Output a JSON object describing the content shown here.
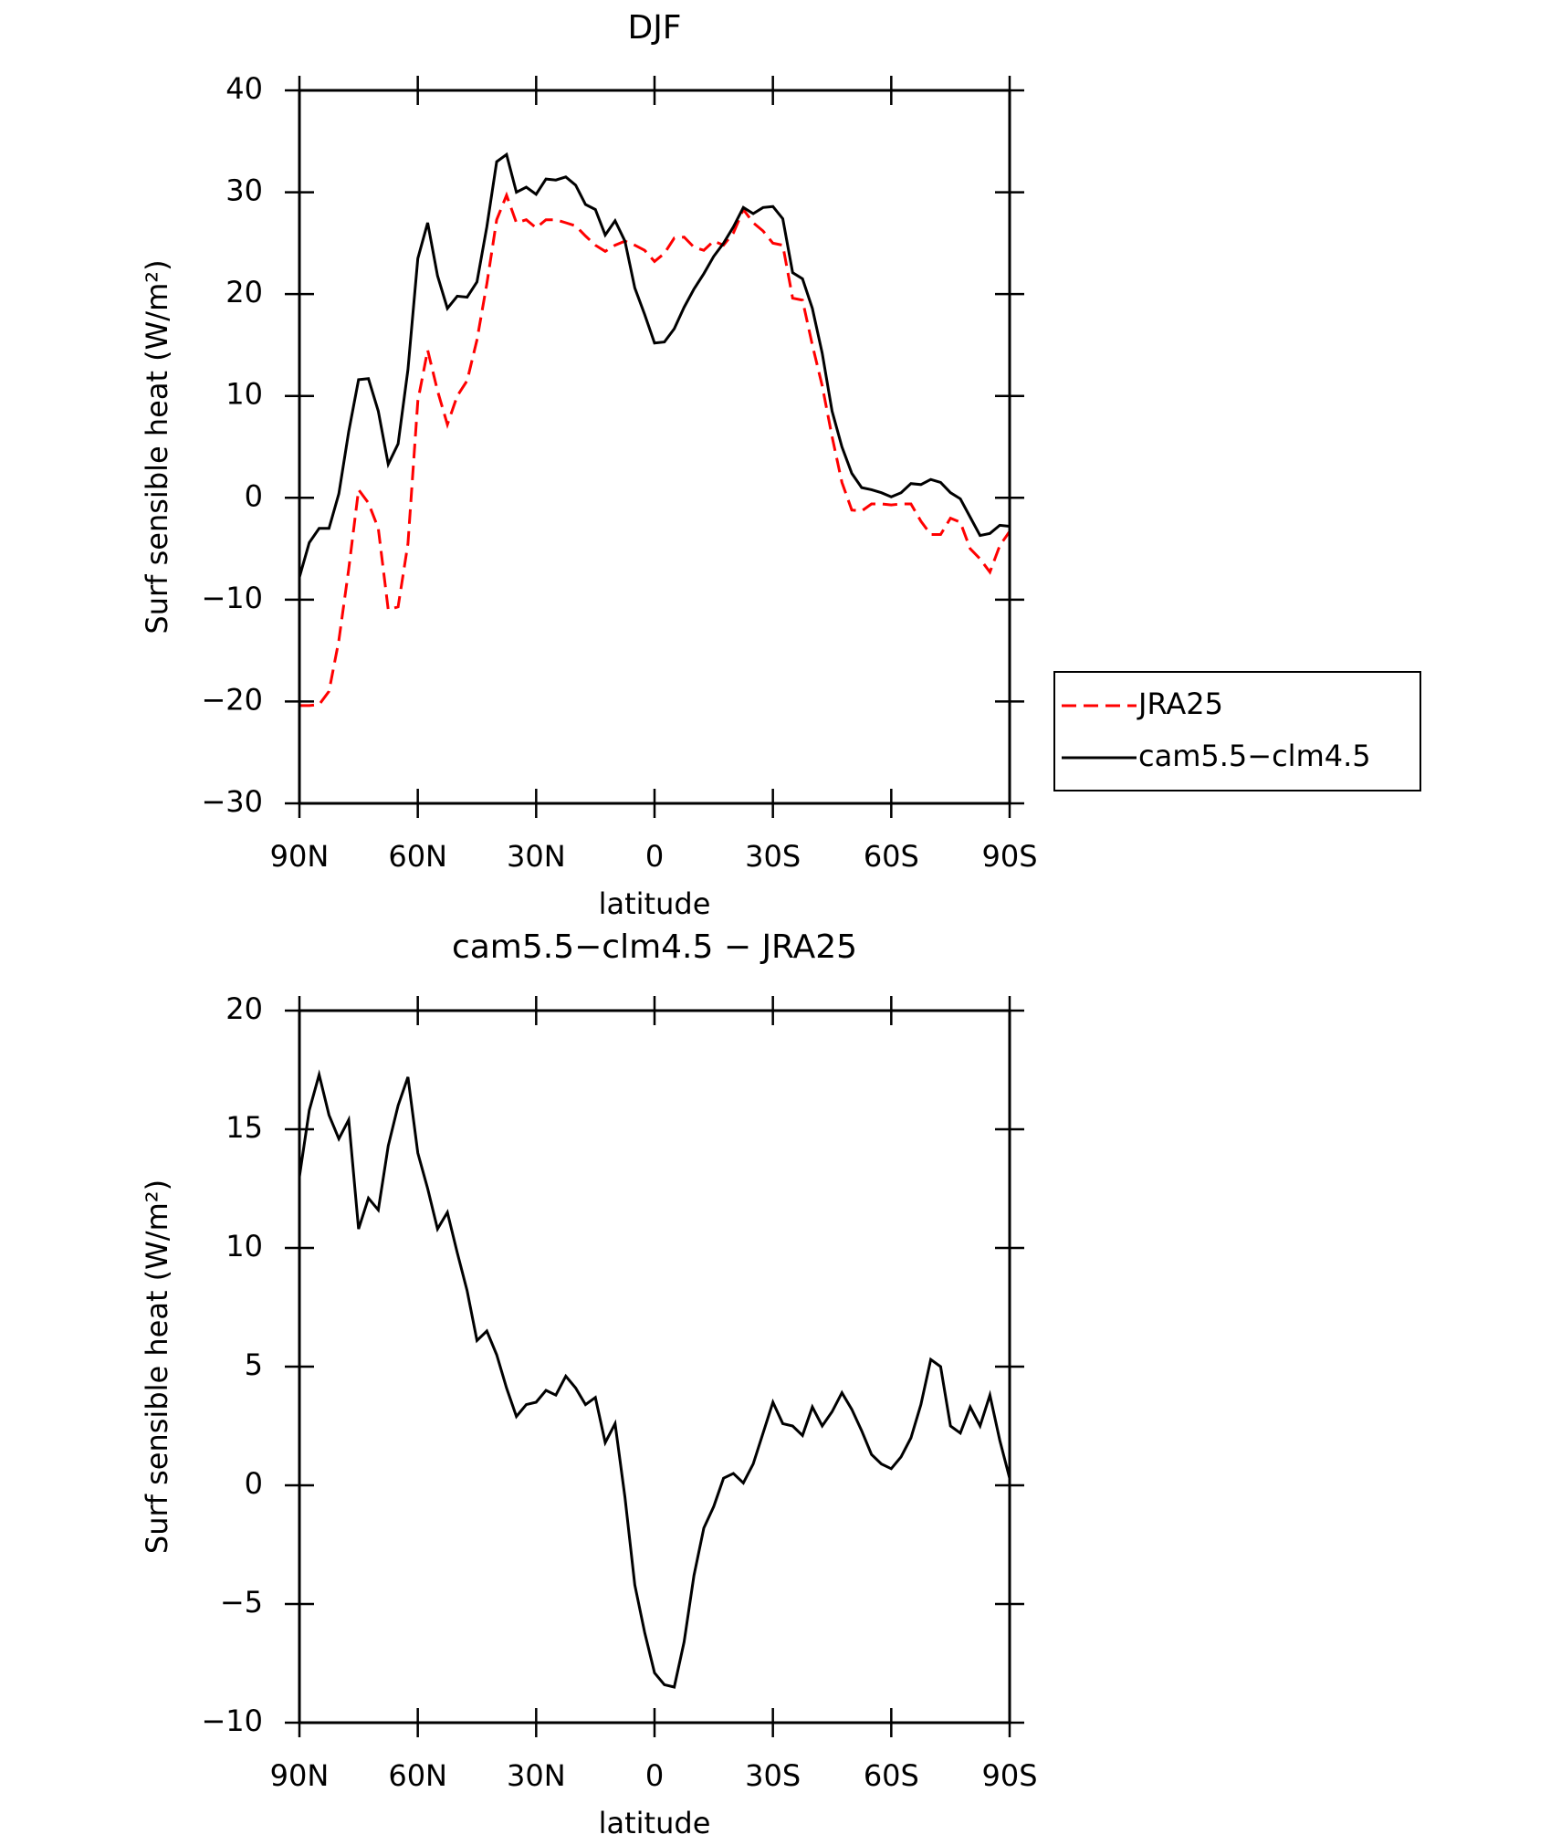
{
  "chart_data": [
    {
      "type": "line",
      "title": "DJF",
      "xlabel": "latitude",
      "ylabel": "Surf sensible heat (W/m²)",
      "x": [
        90,
        87.5,
        85,
        82.5,
        80,
        77.5,
        75,
        72.5,
        70,
        67.5,
        65,
        62.5,
        60,
        57.5,
        55,
        52.5,
        50,
        47.5,
        45,
        42.5,
        40,
        37.5,
        35,
        32.5,
        30,
        27.5,
        25,
        22.5,
        20,
        17.5,
        15,
        12.5,
        10,
        7.5,
        5,
        2.5,
        0,
        -2.5,
        -5,
        -7.5,
        -10,
        -12.5,
        -15,
        -17.5,
        -20,
        -22.5,
        -25,
        -27.5,
        -30,
        -32.5,
        -35,
        -37.5,
        -40,
        -42.5,
        -45,
        -47.5,
        -50,
        -52.5,
        -55,
        -57.5,
        -60,
        -62.5,
        -65,
        -67.5,
        -70,
        -72.5,
        -75,
        -77.5,
        -80,
        -82.5,
        -85,
        -87.5,
        -90
      ],
      "series": [
        {
          "name": "JRA25",
          "color": "#ff0000",
          "linestyle": "dashed",
          "values": [
            -20.4,
            -20.4,
            -20.3,
            -19,
            -14,
            -7,
            0.8,
            -0.5,
            -3,
            -11,
            -10.7,
            -4.5,
            9.5,
            14.5,
            10.5,
            7.2,
            10,
            11.5,
            15.5,
            21,
            27.3,
            29.7,
            27,
            27.3,
            26.5,
            27.3,
            27.3,
            27,
            26.7,
            25.7,
            24.8,
            24.2,
            24.8,
            25.2,
            24.8,
            24.3,
            23.2,
            24,
            25.5,
            25.6,
            24.6,
            24.3,
            25.2,
            24.8,
            26,
            28.3,
            27,
            26.2,
            25,
            24.8,
            19.6,
            19.4,
            15,
            11,
            6,
            1.5,
            -1.2,
            -1.3,
            -0.6,
            -0.6,
            -0.7,
            -0.6,
            -0.6,
            -2.3,
            -3.6,
            -3.6,
            -2,
            -2.4,
            -5,
            -6,
            -7.3,
            -4.7,
            -3.3
          ]
        },
        {
          "name": "cam5.5−clm4.5",
          "color": "#000000",
          "linestyle": "solid",
          "values": [
            -7.8,
            -4.4,
            -3,
            -3,
            0.4,
            6.5,
            11.6,
            11.7,
            8.5,
            3.3,
            5.3,
            12.6,
            23.5,
            27,
            21.8,
            18.6,
            19.8,
            19.7,
            21.2,
            26.6,
            33,
            33.7,
            30,
            30.5,
            29.8,
            31.3,
            31.2,
            31.5,
            30.7,
            28.8,
            28.3,
            25.8,
            27.2,
            25.2,
            20.6,
            18,
            15.2,
            15.3,
            16.6,
            18.7,
            20.5,
            22,
            23.7,
            25,
            26.6,
            28.5,
            27.9,
            28.5,
            28.6,
            27.4,
            22.1,
            21.5,
            18.6,
            14.2,
            8.5,
            5,
            2.4,
            1,
            0.8,
            0.5,
            0.1,
            0.5,
            1.4,
            1.3,
            1.8,
            1.5,
            0.5,
            -0.1,
            -1.9,
            -3.7,
            -3.5,
            -2.7,
            -2.8
          ]
        }
      ],
      "xlim": [
        90,
        -90
      ],
      "xticks": [
        {
          "value": 90,
          "label": "90N"
        },
        {
          "value": 60,
          "label": "60N"
        },
        {
          "value": 30,
          "label": "30N"
        },
        0,
        {
          "value": -30,
          "label": "30S"
        },
        {
          "value": -60,
          "label": "60S"
        },
        {
          "value": -90,
          "label": "90S"
        }
      ],
      "ylim": [
        -30,
        40
      ],
      "yticks": [
        {
          "value": -30,
          "label": "−30"
        },
        {
          "value": -20,
          "label": "−20"
        },
        {
          "value": -10,
          "label": "−10"
        },
        0,
        10,
        20,
        30,
        40
      ],
      "legend": "right"
    },
    {
      "type": "line",
      "title": "cam5.5−clm4.5 − JRA25",
      "xlabel": "latitude",
      "ylabel": "Surf sensible heat (W/m²)",
      "x": [
        90,
        87.5,
        85,
        82.5,
        80,
        77.5,
        75,
        72.5,
        70,
        67.5,
        65,
        62.5,
        60,
        57.5,
        55,
        52.5,
        50,
        47.5,
        45,
        42.5,
        40,
        37.5,
        35,
        32.5,
        30,
        27.5,
        25,
        22.5,
        20,
        17.5,
        15,
        12.5,
        10,
        7.5,
        5,
        2.5,
        0,
        -2.5,
        -5,
        -7.5,
        -10,
        -12.5,
        -15,
        -17.5,
        -20,
        -22.5,
        -25,
        -27.5,
        -30,
        -32.5,
        -35,
        -37.5,
        -40,
        -42.5,
        -45,
        -47.5,
        -50,
        -52.5,
        -55,
        -57.5,
        -60,
        -62.5,
        -65,
        -67.5,
        -70,
        -72.5,
        -75,
        -77.5,
        -80,
        -82.5,
        -85,
        -87.5,
        -90
      ],
      "series": [
        {
          "color": "#000000",
          "linestyle": "solid",
          "values": [
            13,
            15.8,
            17.3,
            15.6,
            14.6,
            15.4,
            10.8,
            12.1,
            11.6,
            14.3,
            16,
            17.2,
            14,
            12.5,
            10.8,
            11.5,
            9.8,
            8.2,
            6.1,
            6.5,
            5.5,
            4.1,
            2.9,
            3.4,
            3.5,
            4,
            3.8,
            4.6,
            4.1,
            3.4,
            3.7,
            1.8,
            2.6,
            -0.5,
            -4.2,
            -6.2,
            -7.9,
            -8.4,
            -8.5,
            -6.6,
            -3.8,
            -1.8,
            -0.9,
            0.3,
            0.5,
            0.1,
            0.9,
            2.2,
            3.5,
            2.6,
            2.5,
            2.1,
            3.3,
            2.5,
            3.1,
            3.9,
            3.2,
            2.3,
            1.3,
            0.9,
            0.7,
            1.2,
            2,
            3.4,
            5.3,
            5,
            2.5,
            2.2,
            3.3,
            2.5,
            3.8,
            1.9,
            0.3
          ]
        }
      ],
      "xlim": [
        90,
        -90
      ],
      "xticks": [
        {
          "value": 90,
          "label": "90N"
        },
        {
          "value": 60,
          "label": "60N"
        },
        {
          "value": 30,
          "label": "30N"
        },
        0,
        {
          "value": -30,
          "label": "30S"
        },
        {
          "value": -60,
          "label": "60S"
        },
        {
          "value": -90,
          "label": "90S"
        }
      ],
      "ylim": [
        -10,
        20
      ],
      "yticks": [
        {
          "value": -10,
          "label": "−10"
        },
        {
          "value": -5,
          "label": "−5"
        },
        0,
        5,
        10,
        15,
        20
      ]
    }
  ]
}
